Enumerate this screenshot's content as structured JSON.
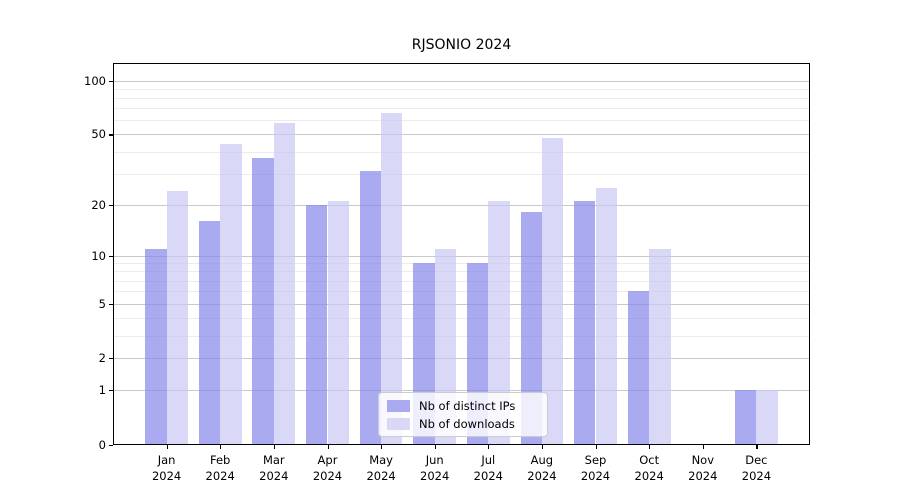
{
  "title": "RJSONIO 2024",
  "chart_data": {
    "type": "bar",
    "categories": [
      "Jan 2024",
      "Feb 2024",
      "Mar 2024",
      "Apr 2024",
      "May 2024",
      "Jun 2024",
      "Jul 2024",
      "Aug 2024",
      "Sep 2024",
      "Oct 2024",
      "Nov 2024",
      "Dec 2024"
    ],
    "x_months": [
      "Jan",
      "Feb",
      "Mar",
      "Apr",
      "May",
      "Jun",
      "Jul",
      "Aug",
      "Sep",
      "Oct",
      "Nov",
      "Dec"
    ],
    "x_year": "2024",
    "series": [
      {
        "name": "Nb of distinct IPs",
        "color": "#aaaaf0",
        "fill": "rgba(134,134,234,0.7)",
        "values": [
          11,
          16,
          37,
          20,
          31,
          9,
          9,
          18,
          21,
          6,
          0,
          1
        ]
      },
      {
        "name": "Nb of downloads",
        "color": "#d9d9f7",
        "fill": "rgba(201,201,244,0.7)",
        "values": [
          24,
          44,
          58,
          21,
          66,
          11,
          21,
          48,
          25,
          11,
          0,
          1
        ]
      }
    ],
    "yscale": "log1p",
    "ylim": [
      0,
      125
    ],
    "y_major_ticks": [
      0,
      1,
      2,
      5,
      10,
      20,
      50,
      100
    ],
    "y_minor_ticks": [
      3,
      4,
      6,
      7,
      8,
      9,
      30,
      40,
      60,
      70,
      80,
      90
    ],
    "grid": "on",
    "legend_position": "lower-center",
    "colors": {
      "major_grid": "#c9c9c9",
      "minor_grid": "#ececec",
      "axis": "#000000"
    }
  }
}
